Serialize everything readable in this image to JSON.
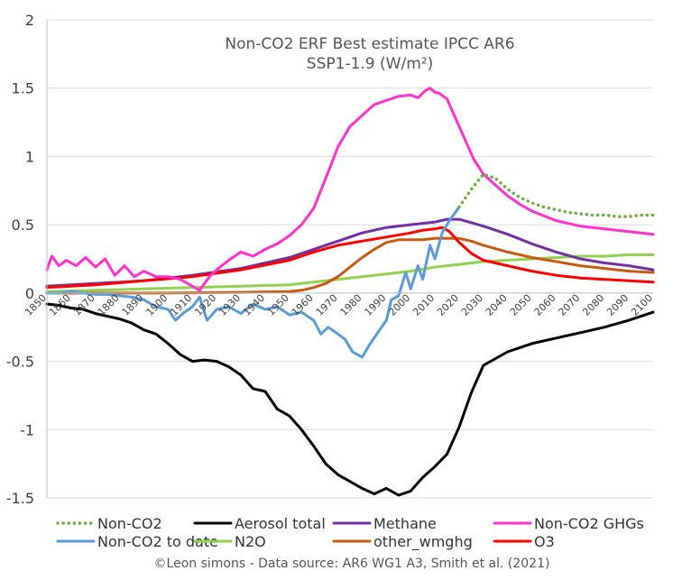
{
  "chart_data": {
    "type": "line",
    "title": "Non-CO2 ERF Best estimate IPCC AR6",
    "subtitle": "SSP1-1.9 (W/m²)",
    "source": "©Leon simons - Data source: AR6 WG1 A3, Smith et al. (2021)",
    "xlim": [
      1850,
      2100
    ],
    "ylim": [
      -1.5,
      2
    ],
    "x_ticks": [
      "1850",
      "1860",
      "1870",
      "1880",
      "1890",
      "1900",
      "1910",
      "1920",
      "1930",
      "1940",
      "1950",
      "1960",
      "1970",
      "1980",
      "1990",
      "2000",
      "2010",
      "2020",
      "2030",
      "2040",
      "2050",
      "2060",
      "2070",
      "2080",
      "2090",
      "2100"
    ],
    "y_ticks": [
      "2",
      "1.5",
      "1",
      "0.5",
      "0",
      "-0.5",
      "-1",
      "-1.5"
    ],
    "y_tick_values": [
      2,
      1.5,
      1,
      0.5,
      0,
      -0.5,
      -1,
      -1.5
    ],
    "grid": "horizontal",
    "legend_position": "bottom",
    "series": [
      {
        "name": "Non-CO2",
        "color": "#70ad47",
        "style": "dotted",
        "x": [
          2020,
          2025,
          2030,
          2035,
          2040,
          2045,
          2050,
          2055,
          2060,
          2065,
          2070,
          2075,
          2080,
          2085,
          2090,
          2095,
          2100
        ],
        "y": [
          0.63,
          0.76,
          0.87,
          0.84,
          0.76,
          0.7,
          0.66,
          0.63,
          0.61,
          0.59,
          0.58,
          0.57,
          0.57,
          0.56,
          0.56,
          0.57,
          0.57
        ]
      },
      {
        "name": "Aerosol total",
        "color": "#000000",
        "style": "solid",
        "x": [
          1850,
          1855,
          1860,
          1865,
          1870,
          1875,
          1880,
          1885,
          1890,
          1895,
          1900,
          1905,
          1910,
          1915,
          1920,
          1925,
          1930,
          1935,
          1940,
          1945,
          1950,
          1955,
          1960,
          1965,
          1970,
          1975,
          1980,
          1985,
          1990,
          1995,
          2000,
          2005,
          2010,
          2015,
          2020,
          2025,
          2030,
          2035,
          2040,
          2045,
          2050,
          2060,
          2070,
          2080,
          2090,
          2100
        ],
        "y": [
          -0.08,
          -0.09,
          -0.11,
          -0.12,
          -0.15,
          -0.17,
          -0.19,
          -0.22,
          -0.27,
          -0.3,
          -0.37,
          -0.45,
          -0.5,
          -0.49,
          -0.5,
          -0.54,
          -0.6,
          -0.7,
          -0.72,
          -0.85,
          -0.9,
          -1.0,
          -1.12,
          -1.25,
          -1.33,
          -1.38,
          -1.43,
          -1.47,
          -1.43,
          -1.48,
          -1.45,
          -1.35,
          -1.27,
          -1.18,
          -0.98,
          -0.73,
          -0.53,
          -0.48,
          -0.43,
          -0.4,
          -0.37,
          -0.33,
          -0.29,
          -0.25,
          -0.2,
          -0.14
        ]
      },
      {
        "name": "Methane",
        "color": "#7030a0",
        "style": "solid",
        "x": [
          1850,
          1870,
          1890,
          1910,
          1930,
          1950,
          1960,
          1970,
          1980,
          1990,
          2000,
          2010,
          2015,
          2020,
          2030,
          2040,
          2050,
          2060,
          2070,
          2080,
          2090,
          2100
        ],
        "y": [
          0.05,
          0.07,
          0.09,
          0.13,
          0.18,
          0.26,
          0.32,
          0.38,
          0.44,
          0.48,
          0.5,
          0.52,
          0.54,
          0.54,
          0.49,
          0.43,
          0.36,
          0.3,
          0.25,
          0.22,
          0.2,
          0.17
        ]
      },
      {
        "name": "Non-CO2 GHGs",
        "color": "#ff33cc",
        "style": "solid",
        "x": [
          1850,
          1852,
          1855,
          1858,
          1862,
          1866,
          1870,
          1874,
          1878,
          1882,
          1886,
          1890,
          1895,
          1900,
          1905,
          1910,
          1913,
          1917,
          1920,
          1925,
          1930,
          1935,
          1940,
          1945,
          1950,
          1955,
          1960,
          1965,
          1970,
          1975,
          1980,
          1985,
          1990,
          1995,
          2000,
          2003,
          2006,
          2008,
          2010,
          2012,
          2015,
          2018,
          2022,
          2026,
          2030,
          2035,
          2040,
          2045,
          2050,
          2060,
          2070,
          2080,
          2090,
          2100
        ],
        "y": [
          0.17,
          0.27,
          0.2,
          0.24,
          0.2,
          0.26,
          0.19,
          0.25,
          0.13,
          0.2,
          0.12,
          0.16,
          0.12,
          0.12,
          0.1,
          0.05,
          0.02,
          0.12,
          0.17,
          0.24,
          0.3,
          0.27,
          0.32,
          0.36,
          0.42,
          0.5,
          0.62,
          0.84,
          1.07,
          1.22,
          1.3,
          1.38,
          1.41,
          1.44,
          1.45,
          1.43,
          1.48,
          1.5,
          1.47,
          1.46,
          1.42,
          1.3,
          1.14,
          0.98,
          0.87,
          0.79,
          0.71,
          0.65,
          0.6,
          0.53,
          0.49,
          0.47,
          0.45,
          0.43
        ]
      },
      {
        "name": "Non-CO2 to date",
        "color": "#5b9bd5",
        "style": "solid",
        "x": [
          1850,
          1855,
          1860,
          1865,
          1870,
          1875,
          1880,
          1885,
          1890,
          1895,
          1900,
          1903,
          1906,
          1910,
          1913,
          1916,
          1920,
          1925,
          1930,
          1935,
          1940,
          1945,
          1950,
          1955,
          1960,
          1963,
          1966,
          1970,
          1973,
          1976,
          1980,
          1983,
          1986,
          1990,
          1992,
          1995,
          1998,
          2000,
          2003,
          2005,
          2008,
          2010,
          2013,
          2016,
          2018,
          2020
        ],
        "y": [
          0,
          0,
          0.01,
          0,
          -0.01,
          -0.01,
          -0.02,
          -0.03,
          -0.05,
          -0.1,
          -0.12,
          -0.2,
          -0.15,
          -0.1,
          -0.03,
          -0.2,
          -0.12,
          -0.1,
          -0.15,
          -0.08,
          -0.12,
          -0.1,
          -0.16,
          -0.14,
          -0.2,
          -0.3,
          -0.25,
          -0.3,
          -0.34,
          -0.43,
          -0.47,
          -0.38,
          -0.3,
          -0.2,
          -0.05,
          -0.02,
          0.15,
          0.03,
          0.2,
          0.1,
          0.35,
          0.25,
          0.44,
          0.53,
          0.58,
          0.63
        ]
      },
      {
        "name": "N2O",
        "color": "#92d050",
        "style": "solid",
        "x": [
          1850,
          1870,
          1890,
          1910,
          1930,
          1950,
          1960,
          1970,
          1980,
          1990,
          2000,
          2010,
          2020,
          2030,
          2040,
          2050,
          2060,
          2070,
          2080,
          2090,
          2100
        ],
        "y": [
          0.01,
          0.02,
          0.03,
          0.04,
          0.05,
          0.06,
          0.08,
          0.1,
          0.12,
          0.14,
          0.16,
          0.19,
          0.21,
          0.23,
          0.24,
          0.25,
          0.26,
          0.27,
          0.27,
          0.28,
          0.28
        ]
      },
      {
        "name": "other_wmghg",
        "color": "#c55a11",
        "style": "solid",
        "x": [
          1850,
          1900,
          1930,
          1950,
          1955,
          1960,
          1965,
          1970,
          1975,
          1980,
          1985,
          1990,
          1995,
          2000,
          2005,
          2010,
          2015,
          2020,
          2025,
          2030,
          2040,
          2050,
          2060,
          2070,
          2080,
          2090,
          2100
        ],
        "y": [
          0,
          0,
          0.005,
          0.01,
          0.02,
          0.04,
          0.07,
          0.12,
          0.19,
          0.26,
          0.32,
          0.37,
          0.39,
          0.39,
          0.39,
          0.4,
          0.4,
          0.4,
          0.38,
          0.35,
          0.3,
          0.26,
          0.23,
          0.2,
          0.18,
          0.16,
          0.15
        ]
      },
      {
        "name": "O3",
        "color": "#ff0000",
        "style": "solid",
        "x": [
          1850,
          1870,
          1890,
          1910,
          1930,
          1950,
          1960,
          1970,
          1980,
          1990,
          2000,
          2005,
          2010,
          2013,
          2016,
          2020,
          2025,
          2030,
          2040,
          2050,
          2060,
          2070,
          2080,
          2090,
          2100
        ],
        "y": [
          0.04,
          0.06,
          0.09,
          0.12,
          0.17,
          0.24,
          0.3,
          0.35,
          0.38,
          0.41,
          0.44,
          0.46,
          0.47,
          0.48,
          0.45,
          0.37,
          0.29,
          0.24,
          0.2,
          0.16,
          0.13,
          0.11,
          0.1,
          0.09,
          0.08
        ]
      }
    ]
  }
}
